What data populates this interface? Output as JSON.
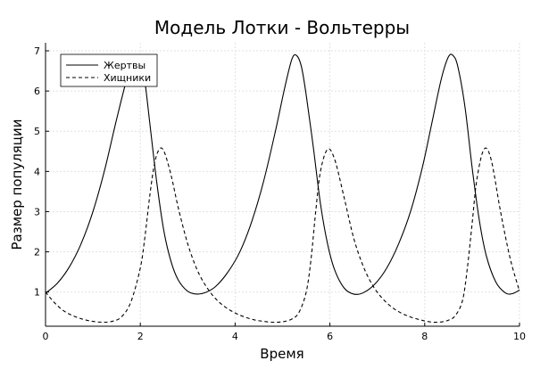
{
  "chart_data": {
    "type": "line",
    "title": "Модель Лотки - Вольтерры",
    "xlabel": "Время",
    "ylabel": "Размер популяции",
    "xlim": [
      0,
      10
    ],
    "ylim": [
      0.15,
      7.2
    ],
    "xticks": [
      "0",
      "2",
      "4",
      "6",
      "8",
      "10"
    ],
    "yticks": [
      "1",
      "2",
      "3",
      "4",
      "5",
      "6",
      "7"
    ],
    "grid": true,
    "legend_position": "top-left",
    "series": [
      {
        "name": "Жертвы",
        "line_style": "solid",
        "color": "#000000",
        "x": [
          0,
          0.25,
          0.5,
          0.75,
          1.0,
          1.25,
          1.5,
          1.75,
          1.9,
          2.0,
          2.1,
          2.2,
          2.35,
          2.5,
          2.65,
          2.8,
          3.0,
          3.2,
          3.4,
          3.6,
          3.85,
          4.1,
          4.35,
          4.6,
          4.85,
          5.05,
          5.2,
          5.3,
          5.4,
          5.5,
          5.65,
          5.8,
          5.95,
          6.1,
          6.3,
          6.5,
          6.7,
          6.95,
          7.2,
          7.45,
          7.7,
          7.95,
          8.15,
          8.35,
          8.5,
          8.6,
          8.7,
          8.85,
          9.0,
          9.15,
          9.3,
          9.5,
          9.7,
          9.85,
          10.0
        ],
        "values": [
          0.97,
          1.22,
          1.62,
          2.2,
          3.0,
          4.05,
          5.3,
          6.45,
          6.85,
          6.8,
          6.2,
          5.2,
          3.7,
          2.5,
          1.75,
          1.3,
          1.02,
          0.95,
          1.0,
          1.15,
          1.5,
          2.0,
          2.75,
          3.75,
          5.0,
          6.1,
          6.8,
          6.88,
          6.6,
          5.9,
          4.6,
          3.2,
          2.2,
          1.55,
          1.1,
          0.95,
          0.98,
          1.2,
          1.6,
          2.2,
          3.0,
          4.1,
          5.2,
          6.3,
          6.85,
          6.88,
          6.6,
          5.6,
          4.1,
          2.8,
          1.9,
          1.25,
          0.98,
          0.96,
          1.05
        ]
      },
      {
        "name": "Хищники",
        "line_style": "dashed",
        "color": "#000000",
        "x": [
          0,
          0.2,
          0.4,
          0.6,
          0.8,
          1.0,
          1.2,
          1.4,
          1.6,
          1.8,
          2.0,
          2.1,
          2.2,
          2.3,
          2.4,
          2.5,
          2.65,
          2.8,
          3.0,
          3.2,
          3.4,
          3.6,
          3.8,
          4.0,
          4.2,
          4.4,
          4.6,
          4.8,
          5.0,
          5.2,
          5.35,
          5.5,
          5.6,
          5.7,
          5.8,
          5.95,
          6.1,
          6.3,
          6.5,
          6.7,
          6.9,
          7.1,
          7.3,
          7.5,
          7.7,
          7.9,
          8.1,
          8.3,
          8.5,
          8.65,
          8.8,
          8.9,
          9.0,
          9.1,
          9.25,
          9.4,
          9.6,
          9.8,
          10.0
        ],
        "values": [
          1.0,
          0.72,
          0.52,
          0.4,
          0.32,
          0.27,
          0.25,
          0.27,
          0.38,
          0.75,
          1.6,
          2.4,
          3.4,
          4.2,
          4.55,
          4.5,
          3.9,
          3.1,
          2.2,
          1.55,
          1.12,
          0.82,
          0.62,
          0.48,
          0.38,
          0.31,
          0.27,
          0.25,
          0.26,
          0.33,
          0.5,
          1.0,
          1.8,
          3.0,
          4.0,
          4.55,
          4.3,
          3.35,
          2.35,
          1.65,
          1.17,
          0.85,
          0.63,
          0.48,
          0.38,
          0.31,
          0.26,
          0.25,
          0.3,
          0.42,
          0.8,
          1.6,
          2.7,
          3.8,
          4.55,
          4.3,
          3.0,
          1.85,
          1.02
        ]
      }
    ]
  }
}
